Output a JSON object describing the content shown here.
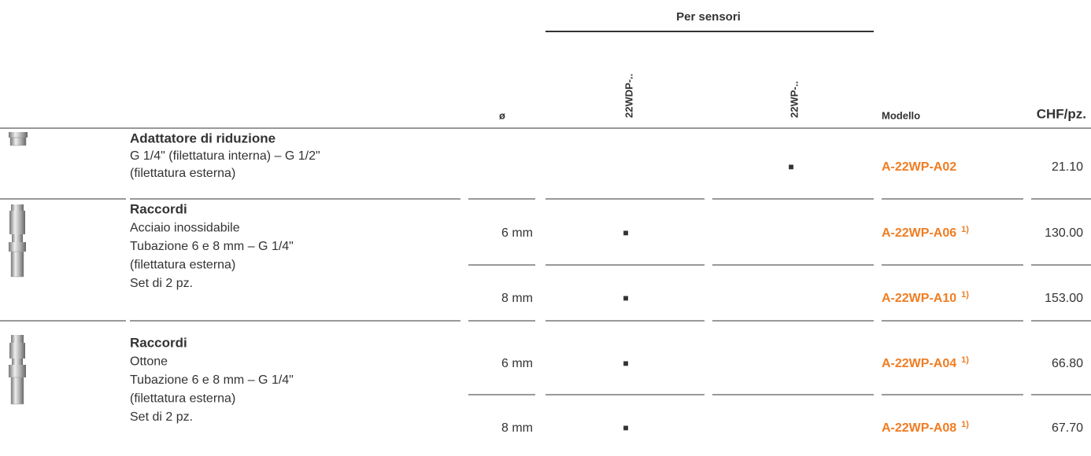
{
  "header": {
    "group": "Per sensori",
    "columns": [
      "ø",
      "22WDP-..",
      "22WP-..",
      "Modello",
      "CHF/pz."
    ]
  },
  "rows": [
    {
      "title": "Adattatore di riduzione",
      "lines": [
        "G 1/4\" (filettatura interna) – G 1/2\"",
        "(filettatura esterna)"
      ],
      "items": [
        {
          "diameter": null,
          "wdp": null,
          "wp": "■",
          "model": "A-22WP-A02",
          "note": null,
          "price": "21.10"
        }
      ]
    },
    {
      "title": "Raccordi",
      "lines": [
        "Acciaio inossidabile",
        "Tubazione 6 e 8 mm – G 1/4\"",
        "(filettatura esterna)",
        "Set di 2 pz."
      ],
      "items": [
        {
          "diameter": "6 mm",
          "wdp": "■",
          "wp": null,
          "model": "A-22WP-A06",
          "note": "1)",
          "price": "130.00"
        },
        {
          "diameter": "8 mm",
          "wdp": "■",
          "wp": null,
          "model": "A-22WP-A10",
          "note": "1)",
          "price": "153.00"
        }
      ]
    },
    {
      "title": "Raccordi",
      "lines": [
        "Ottone",
        "Tubazione 6 e 8 mm – G 1/4\"",
        "(filettatura esterna)",
        "Set di 2 pz."
      ],
      "items": [
        {
          "diameter": "6 mm",
          "wdp": "■",
          "wp": null,
          "model": "A-22WP-A04",
          "note": "1)",
          "price": "66.80"
        },
        {
          "diameter": "8 mm",
          "wdp": "■",
          "wp": null,
          "model": "A-22WP-A08",
          "note": "1)",
          "price": "67.70"
        }
      ]
    }
  ]
}
